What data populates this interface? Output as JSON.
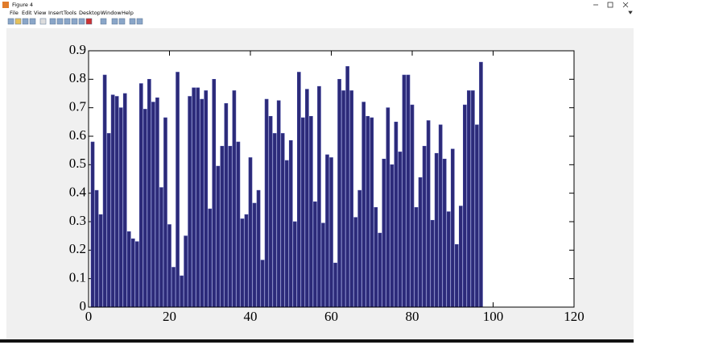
{
  "window": {
    "title": "Figure 4",
    "menu": [
      "File",
      "Edit",
      "View",
      "Insert",
      "Tools",
      "Desktop",
      "Window",
      "Help"
    ]
  },
  "chart_data": {
    "type": "bar",
    "x": [
      1,
      2,
      3,
      4,
      5,
      6,
      7,
      8,
      9,
      10,
      11,
      12,
      13,
      14,
      15,
      16,
      17,
      18,
      19,
      20,
      21,
      22,
      23,
      24,
      25,
      26,
      27,
      28,
      29,
      30,
      31,
      32,
      33,
      34,
      35,
      36,
      37,
      38,
      39,
      40,
      41,
      42,
      43,
      44,
      45,
      46,
      47,
      48,
      49,
      50,
      51,
      52,
      53,
      54,
      55,
      56,
      57,
      58,
      59,
      60,
      61,
      62,
      63,
      64,
      65,
      66,
      67,
      68,
      69,
      70,
      71,
      72,
      73,
      74,
      75,
      76,
      77,
      78,
      79,
      80,
      81,
      82,
      83,
      84,
      85,
      86,
      87,
      88,
      89,
      90,
      91,
      92,
      93,
      94,
      95,
      96,
      97
    ],
    "values": [
      0.58,
      0.41,
      0.325,
      0.815,
      0.61,
      0.745,
      0.74,
      0.7,
      0.75,
      0.265,
      0.24,
      0.23,
      0.785,
      0.695,
      0.8,
      0.72,
      0.735,
      0.42,
      0.665,
      0.29,
      0.14,
      0.825,
      0.11,
      0.25,
      0.74,
      0.77,
      0.77,
      0.73,
      0.76,
      0.345,
      0.8,
      0.495,
      0.565,
      0.715,
      0.565,
      0.76,
      0.58,
      0.31,
      0.325,
      0.525,
      0.365,
      0.41,
      0.165,
      0.73,
      0.67,
      0.61,
      0.725,
      0.61,
      0.515,
      0.585,
      0.3,
      0.825,
      0.665,
      0.765,
      0.67,
      0.37,
      0.775,
      0.295,
      0.535,
      0.525,
      0.155,
      0.8,
      0.76,
      0.845,
      0.76,
      0.315,
      0.41,
      0.72,
      0.67,
      0.665,
      0.35,
      0.26,
      0.52,
      0.7,
      0.5,
      0.65,
      0.545,
      0.815,
      0.815,
      0.71,
      0.35,
      0.455,
      0.565,
      0.655,
      0.305,
      0.54,
      0.64,
      0.52,
      0.335,
      0.555,
      0.22,
      0.355,
      0.71,
      0.76,
      0.76,
      0.64,
      0.86
    ],
    "color": "#2c2a78",
    "xlim": [
      0,
      120
    ],
    "xticks": [
      0,
      20,
      40,
      60,
      80,
      100,
      120
    ],
    "ylim": [
      0,
      0.9
    ],
    "yticks": [
      0,
      0.1,
      0.2,
      0.3,
      0.4,
      0.5,
      0.6,
      0.7,
      0.8,
      0.9
    ]
  }
}
